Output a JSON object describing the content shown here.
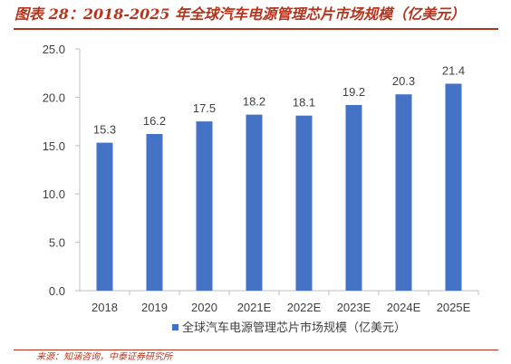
{
  "title": "图表 28：2018-2025 年全球汽车电源管理芯片市场规模（亿美元）",
  "source": "来源：知涵咨询，中泰证券研究所",
  "colors": {
    "bar": "#4472c4",
    "accent": "#b5341c",
    "axis": "#bfbfbf",
    "text": "#404040"
  },
  "chart_data": {
    "type": "bar",
    "categories": [
      "2018",
      "2019",
      "2020",
      "2021E",
      "2022E",
      "2023E",
      "2024E",
      "2025E"
    ],
    "series": [
      {
        "name": "全球汽车电源管理芯片市场规模（亿美元）",
        "values": [
          15.3,
          16.2,
          17.5,
          18.2,
          18.1,
          19.2,
          20.3,
          21.4
        ]
      }
    ],
    "value_labels": [
      "15.3",
      "16.2",
      "17.5",
      "18.2",
      "18.1",
      "19.2",
      "20.3",
      "21.4"
    ],
    "ylim": [
      0,
      25
    ],
    "yticks": [
      0,
      5,
      10,
      15,
      20,
      25
    ],
    "ytick_labels": [
      "0.0",
      "5.0",
      "10.0",
      "15.0",
      "20.0",
      "25.0"
    ],
    "legend_position": "bottom",
    "grid": false
  }
}
